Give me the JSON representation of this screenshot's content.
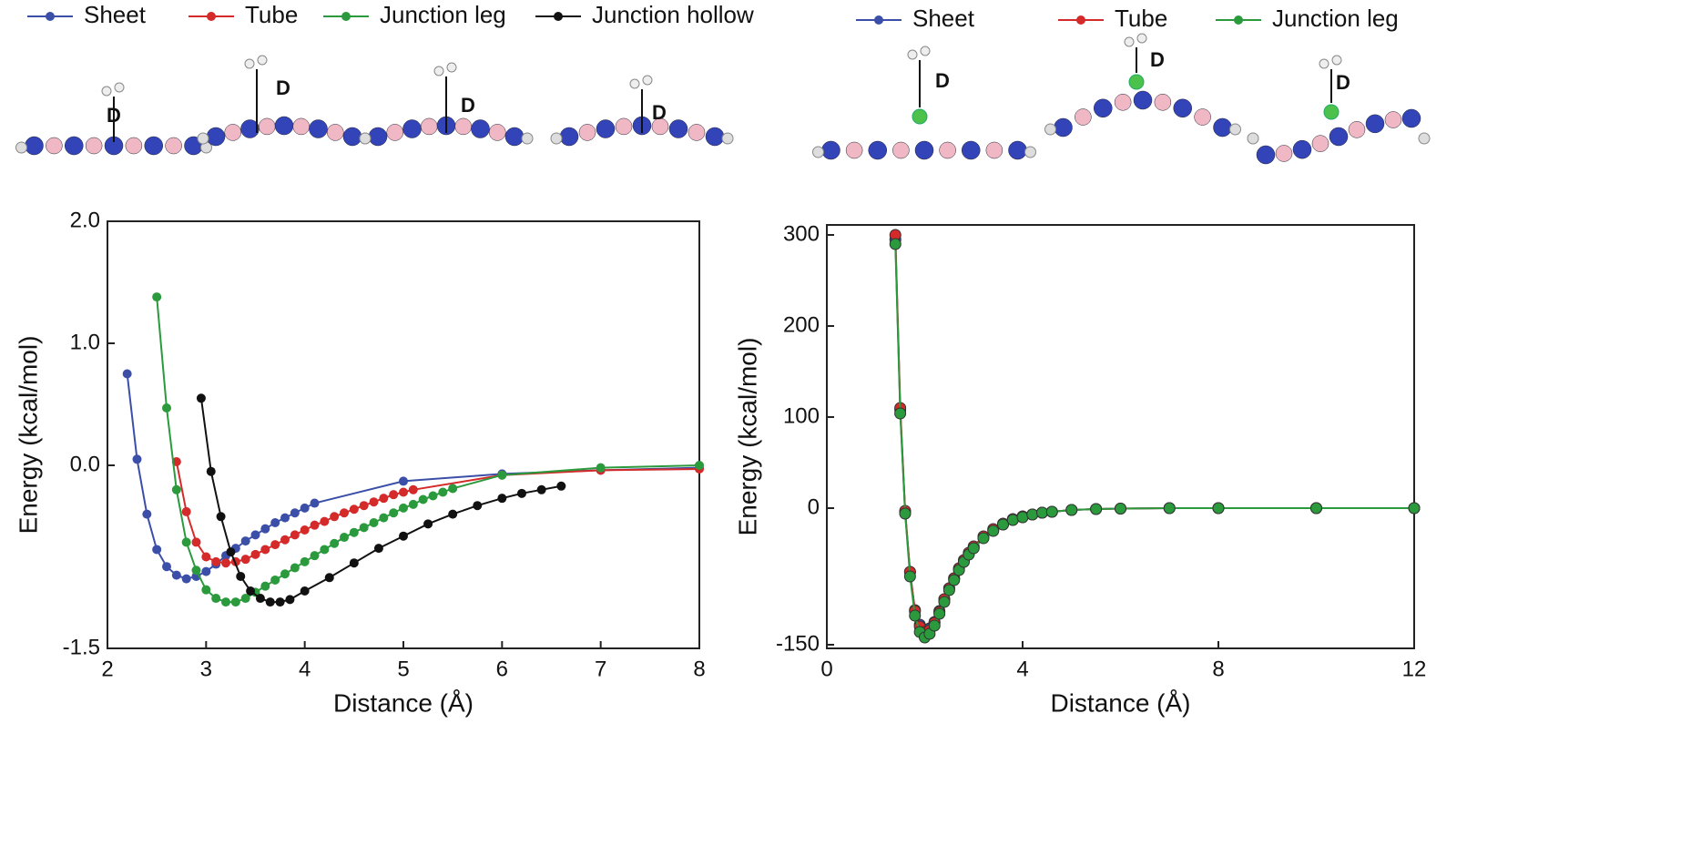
{
  "chart_data": [
    {
      "type": "line",
      "x_label": "Distance  (Å)",
      "y_label": "Energy (kcal/mol)",
      "xlim": [
        2,
        8
      ],
      "ylim": [
        -1.5,
        2.0
      ],
      "xticks": [
        2,
        3,
        4,
        5,
        6,
        7,
        8
      ],
      "yticks": [
        {
          "value": 2.0,
          "label": "2.0"
        },
        {
          "value": 1.0,
          "label": "1.0"
        },
        {
          "value": 0.0,
          "label": "0.0"
        },
        -1.5
      ],
      "annotations": [
        "D",
        "D",
        "D",
        "D"
      ],
      "series": [
        {
          "name": "Sheet",
          "color": "#3b4fa8",
          "x": [
            2.2,
            2.3,
            2.4,
            2.5,
            2.6,
            2.7,
            2.8,
            2.9,
            3.0,
            3.1,
            3.2,
            3.3,
            3.4,
            3.5,
            3.6,
            3.7,
            3.8,
            3.9,
            4.0,
            4.1,
            5.0,
            6.0,
            7.0,
            8.0
          ],
          "values": [
            0.75,
            0.05,
            -0.4,
            -0.69,
            -0.83,
            -0.9,
            -0.93,
            -0.91,
            -0.87,
            -0.81,
            -0.74,
            -0.68,
            -0.62,
            -0.57,
            -0.52,
            -0.47,
            -0.43,
            -0.39,
            -0.35,
            -0.31,
            -0.13,
            -0.07,
            -0.04,
            -0.02
          ]
        },
        {
          "name": "Tube",
          "color": "#d42a2a",
          "x": [
            2.7,
            2.8,
            2.9,
            3.0,
            3.1,
            3.2,
            3.3,
            3.4,
            3.5,
            3.6,
            3.7,
            3.8,
            3.9,
            4.0,
            4.1,
            4.2,
            4.3,
            4.4,
            4.5,
            4.6,
            4.7,
            4.8,
            4.9,
            5.0,
            5.1,
            6.0,
            7.0,
            8.0
          ],
          "values": [
            0.03,
            -0.38,
            -0.63,
            -0.75,
            -0.79,
            -0.8,
            -0.79,
            -0.77,
            -0.73,
            -0.69,
            -0.65,
            -0.61,
            -0.57,
            -0.53,
            -0.49,
            -0.46,
            -0.42,
            -0.39,
            -0.36,
            -0.33,
            -0.3,
            -0.27,
            -0.24,
            -0.22,
            -0.2,
            -0.08,
            -0.04,
            -0.03
          ]
        },
        {
          "name": "Junction leg",
          "color": "#2a9a3c",
          "x": [
            2.5,
            2.6,
            2.7,
            2.8,
            2.9,
            3.0,
            3.1,
            3.2,
            3.3,
            3.4,
            3.5,
            3.6,
            3.7,
            3.8,
            3.9,
            4.0,
            4.1,
            4.2,
            4.3,
            4.4,
            4.5,
            4.6,
            4.7,
            4.8,
            4.9,
            5.0,
            5.1,
            5.2,
            5.3,
            5.4,
            5.5,
            6.0,
            7.0,
            8.0
          ],
          "values": [
            1.38,
            0.47,
            -0.2,
            -0.63,
            -0.86,
            -1.02,
            -1.09,
            -1.12,
            -1.12,
            -1.09,
            -1.04,
            -0.99,
            -0.94,
            -0.89,
            -0.84,
            -0.79,
            -0.74,
            -0.69,
            -0.64,
            -0.59,
            -0.55,
            -0.51,
            -0.47,
            -0.43,
            -0.39,
            -0.35,
            -0.32,
            -0.28,
            -0.25,
            -0.22,
            -0.19,
            -0.08,
            -0.02,
            0.0
          ]
        },
        {
          "name": "Junction hollow",
          "color": "#111111",
          "x": [
            2.95,
            3.05,
            3.15,
            3.25,
            3.35,
            3.45,
            3.55,
            3.65,
            3.75,
            3.85,
            4.0,
            4.25,
            4.5,
            4.75,
            5.0,
            5.25,
            5.5,
            5.75,
            6.0,
            6.2,
            6.4,
            6.6
          ],
          "values": [
            0.55,
            -0.05,
            -0.42,
            -0.71,
            -0.91,
            -1.03,
            -1.09,
            -1.12,
            -1.12,
            -1.1,
            -1.03,
            -0.92,
            -0.8,
            -0.68,
            -0.58,
            -0.48,
            -0.4,
            -0.33,
            -0.27,
            -0.23,
            -0.2,
            -0.17
          ]
        }
      ]
    },
    {
      "type": "line",
      "x_label": "Distance  (Å)",
      "y_label": "Energy (kcal/mol)",
      "xlim": [
        0,
        12
      ],
      "ylim": [
        -154,
        311
      ],
      "xticks": [
        0,
        4,
        8,
        12
      ],
      "yticks": [
        -150,
        0,
        100,
        200,
        300
      ],
      "annotations": [
        "D",
        "D",
        "D"
      ],
      "series": [
        {
          "name": "Sheet",
          "color": "#3b4fa8",
          "x": [
            1.4,
            1.5,
            1.6,
            1.7,
            1.8,
            1.9,
            2.0,
            2.1,
            2.2,
            2.3,
            2.4,
            2.5,
            2.6,
            2.7,
            2.8,
            2.9,
            3.0,
            3.2,
            3.4,
            3.6,
            3.8,
            4.0,
            4.2,
            4.4,
            4.6,
            5.0,
            5.5,
            6,
            7,
            8,
            10,
            12
          ],
          "values": [
            295,
            108,
            -4,
            -70,
            -112,
            -128,
            -134,
            -132,
            -125,
            -113,
            -100,
            -88,
            -77,
            -67,
            -58,
            -50,
            -43,
            -32,
            -24,
            -18,
            -13,
            -10,
            -7,
            -5,
            -4,
            -2,
            -1,
            -0.5,
            0,
            0,
            0,
            0
          ]
        },
        {
          "name": "Tube",
          "color": "#d42a2a",
          "x": [
            1.4,
            1.5,
            1.6,
            1.7,
            1.8,
            1.9,
            2.0,
            2.1,
            2.2,
            2.3,
            2.4,
            2.5,
            2.6,
            2.7,
            2.8,
            2.9,
            3.0,
            3.2,
            3.4,
            3.6,
            3.8,
            4.0,
            4.2,
            4.4,
            4.6,
            5.0,
            5.5,
            6,
            7,
            8,
            10,
            12
          ],
          "values": [
            300,
            110,
            -3,
            -70,
            -113,
            -130,
            -136,
            -134,
            -126,
            -114,
            -100,
            -88,
            -77,
            -66,
            -57,
            -49,
            -42,
            -31,
            -23,
            -17,
            -12,
            -9,
            -7,
            -5,
            -4,
            -2,
            -1,
            -0.5,
            0,
            0,
            0,
            0
          ]
        },
        {
          "name": "Junction leg",
          "color": "#2a9a3c",
          "x": [
            1.4,
            1.5,
            1.6,
            1.7,
            1.8,
            1.9,
            2.0,
            2.1,
            2.2,
            2.3,
            2.4,
            2.5,
            2.6,
            2.7,
            2.8,
            2.9,
            3.0,
            3.2,
            3.4,
            3.6,
            3.8,
            4.0,
            4.2,
            4.4,
            4.6,
            5.0,
            5.5,
            6,
            7,
            8,
            10,
            12
          ],
          "values": [
            290,
            104,
            -6,
            -75,
            -118,
            -136,
            -142,
            -138,
            -129,
            -116,
            -103,
            -90,
            -79,
            -68,
            -59,
            -51,
            -44,
            -33,
            -25,
            -18,
            -13,
            -10,
            -7,
            -5,
            -4,
            -2,
            -1,
            -0.5,
            0,
            0,
            0,
            0
          ]
        }
      ]
    }
  ]
}
